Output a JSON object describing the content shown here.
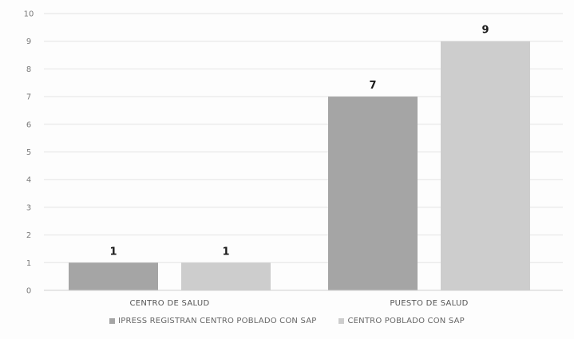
{
  "chart_data": {
    "type": "bar",
    "title": "",
    "xlabel": "",
    "ylabel": "",
    "categories": [
      "CENTRO DE SALUD",
      "PUESTO DE SALUD"
    ],
    "series": [
      {
        "name": "IPRESS REGISTRAN CENTRO POBLADO CON SAP",
        "values": [
          1,
          7
        ],
        "color": "#a5a5a5"
      },
      {
        "name": "CENTRO POBLADO CON SAP",
        "values": [
          1,
          9
        ],
        "color": "#cdcdcd"
      }
    ],
    "ylim": [
      0,
      10
    ],
    "yticks": [
      0,
      1,
      2,
      3,
      4,
      5,
      6,
      7,
      8,
      9,
      10
    ],
    "grid": true,
    "legend_position": "bottom",
    "data_labels": true
  }
}
